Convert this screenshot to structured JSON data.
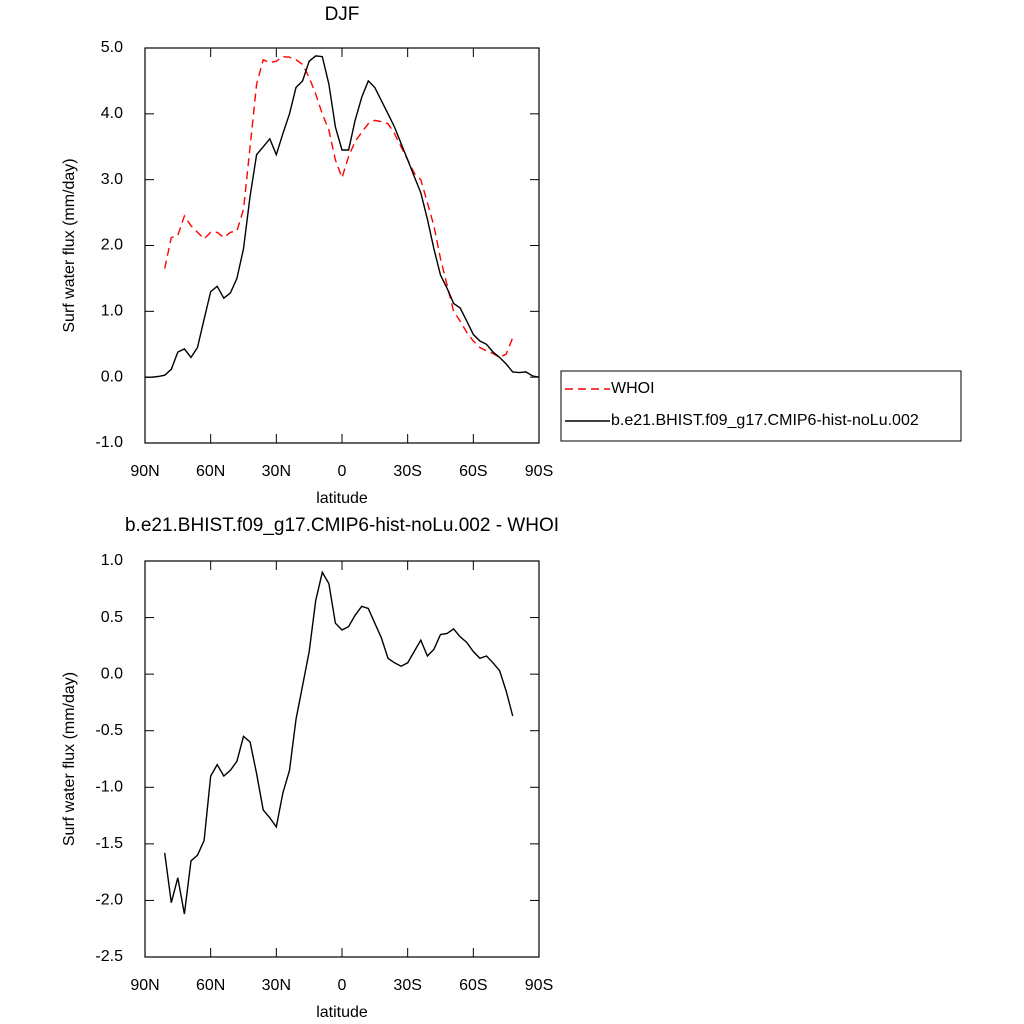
{
  "chart_data": [
    {
      "type": "line",
      "title": "DJF",
      "x_label": "latitude",
      "y_label": "Surf water flux (mm/day)",
      "x": [
        90,
        87,
        84,
        81,
        78,
        75,
        72,
        69,
        66,
        63,
        60,
        57,
        54,
        51,
        48,
        45,
        42,
        39,
        36,
        33,
        30,
        27,
        24,
        21,
        18,
        15,
        12,
        9,
        6,
        3,
        0,
        -3,
        -6,
        -9,
        -12,
        -15,
        -18,
        -21,
        -24,
        -27,
        -30,
        -33,
        -36,
        -39,
        -42,
        -45,
        -48,
        -51,
        -54,
        -57,
        -60,
        -63,
        -66,
        -69,
        -72,
        -75,
        -78,
        -81,
        -84,
        -87,
        -90
      ],
      "xlim": [
        90,
        -90
      ],
      "xticks": [
        {
          "value": 90,
          "label": "90N"
        },
        {
          "value": 60,
          "label": "60N"
        },
        {
          "value": 30,
          "label": "30N"
        },
        0,
        {
          "value": -30,
          "label": "30S"
        },
        {
          "value": -60,
          "label": "60S"
        },
        {
          "value": -90,
          "label": "90S"
        }
      ],
      "ylim": [
        -1,
        5
      ],
      "yticks": [
        {
          "value": -1,
          "label": "-1.0"
        },
        {
          "value": 0,
          "label": "0.0"
        },
        {
          "value": 1,
          "label": "1.0"
        },
        {
          "value": 2,
          "label": "2.0"
        },
        {
          "value": 3,
          "label": "3.0"
        },
        {
          "value": 4,
          "label": "4.0"
        },
        {
          "value": 5,
          "label": "5.0"
        }
      ],
      "legend": "right",
      "series": [
        {
          "name": "WHOI",
          "color": "#ff0000",
          "line_style": "dashed",
          "values": [
            null,
            null,
            null,
            1.65,
            2.12,
            2.15,
            2.45,
            2.3,
            2.2,
            2.1,
            2.2,
            2.2,
            2.12,
            2.2,
            2.22,
            2.55,
            3.5,
            4.45,
            4.82,
            4.78,
            4.8,
            4.87,
            4.86,
            4.82,
            4.75,
            4.55,
            4.3,
            4.0,
            3.75,
            3.3,
            3.03,
            3.35,
            3.58,
            3.72,
            3.85,
            3.9,
            3.88,
            3.85,
            3.7,
            3.5,
            3.3,
            3.1,
            3.0,
            2.65,
            2.3,
            1.8,
            1.4,
            1.0,
            0.85,
            0.68,
            0.55,
            0.45,
            0.4,
            0.36,
            0.3,
            0.35,
            0.6,
            null,
            null,
            null,
            null
          ]
        },
        {
          "name": "b.e21.BHIST.f09_g17.CMIP6-hist-noLu.002",
          "color": "#000000",
          "line_style": "solid",
          "values": [
            0.0,
            0.0,
            0.01,
            0.03,
            0.12,
            0.38,
            0.43,
            0.3,
            0.45,
            0.88,
            1.3,
            1.38,
            1.2,
            1.28,
            1.5,
            1.95,
            2.75,
            3.38,
            3.5,
            3.62,
            3.38,
            3.7,
            4.0,
            4.4,
            4.5,
            4.8,
            4.88,
            4.87,
            4.45,
            3.8,
            3.45,
            3.45,
            3.9,
            4.25,
            4.5,
            4.4,
            4.2,
            4.0,
            3.8,
            3.55,
            3.3,
            3.05,
            2.8,
            2.4,
            1.95,
            1.55,
            1.35,
            1.12,
            1.05,
            0.85,
            0.65,
            0.55,
            0.5,
            0.38,
            0.3,
            0.2,
            0.08,
            0.07,
            0.08,
            0.02,
            0.0
          ]
        }
      ]
    },
    {
      "type": "line",
      "title": "b.e21.BHIST.f09_g17.CMIP6-hist-noLu.002 - WHOI",
      "x_label": "latitude",
      "y_label": "Surf water flux (mm/day)",
      "x": [
        90,
        87,
        84,
        81,
        78,
        75,
        72,
        69,
        66,
        63,
        60,
        57,
        54,
        51,
        48,
        45,
        42,
        39,
        36,
        33,
        30,
        27,
        24,
        21,
        18,
        15,
        12,
        9,
        6,
        3,
        0,
        -3,
        -6,
        -9,
        -12,
        -15,
        -18,
        -21,
        -24,
        -27,
        -30,
        -33,
        -36,
        -39,
        -42,
        -45,
        -48,
        -51,
        -54,
        -57,
        -60,
        -63,
        -66,
        -69,
        -72,
        -75,
        -78,
        -81,
        -84,
        -87,
        -90
      ],
      "xlim": [
        90,
        -90
      ],
      "xticks": [
        {
          "value": 90,
          "label": "90N"
        },
        {
          "value": 60,
          "label": "60N"
        },
        {
          "value": 30,
          "label": "30N"
        },
        0,
        {
          "value": -30,
          "label": "30S"
        },
        {
          "value": -60,
          "label": "60S"
        },
        {
          "value": -90,
          "label": "90S"
        }
      ],
      "ylim": [
        -2.5,
        1
      ],
      "yticks": [
        -2.5,
        {
          "value": -2,
          "label": "-2.0"
        },
        -1.5,
        {
          "value": -1,
          "label": "-1.0"
        },
        -0.5,
        {
          "value": 0,
          "label": "0.0"
        },
        0.5,
        {
          "value": 1,
          "label": "1.0"
        }
      ],
      "series": [
        {
          "color": "#000000",
          "line_style": "solid",
          "values": [
            null,
            null,
            null,
            -1.58,
            -2.02,
            -1.8,
            -2.12,
            -1.65,
            -1.6,
            -1.47,
            -0.9,
            -0.8,
            -0.9,
            -0.85,
            -0.77,
            -0.55,
            -0.6,
            -0.88,
            -1.2,
            -1.27,
            -1.35,
            -1.05,
            -0.85,
            -0.4,
            -0.1,
            0.2,
            0.65,
            0.9,
            0.8,
            0.45,
            0.39,
            0.42,
            0.52,
            0.6,
            0.58,
            0.45,
            0.32,
            0.14,
            0.1,
            0.07,
            0.1,
            0.2,
            0.3,
            0.16,
            0.22,
            0.35,
            0.36,
            0.4,
            0.33,
            0.28,
            0.2,
            0.14,
            0.16,
            0.1,
            0.03,
            -0.15,
            -0.37,
            null,
            null,
            null,
            null
          ]
        }
      ]
    }
  ]
}
